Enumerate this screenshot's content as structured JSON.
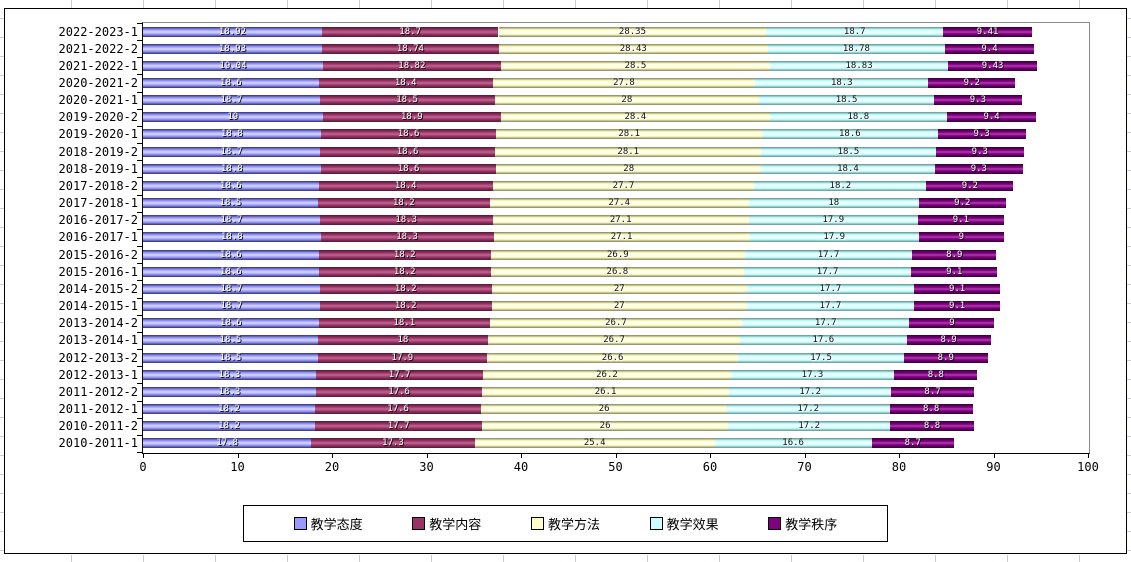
{
  "chart_data": {
    "type": "bar",
    "orientation": "horizontal_stacked",
    "title": "",
    "xlabel": "",
    "ylabel": "",
    "xlim": [
      0,
      100
    ],
    "x_ticks": [
      0,
      10,
      20,
      30,
      40,
      50,
      60,
      70,
      80,
      90,
      100
    ],
    "grid": false,
    "data_labels": true,
    "legend_position": "bottom",
    "categories": [
      "2022-2023-1",
      "2021-2022-2",
      "2021-2022-1",
      "2020-2021-2",
      "2020-2021-1",
      "2019-2020-2",
      "2019-2020-1",
      "2018-2019-2",
      "2018-2019-1",
      "2017-2018-2",
      "2017-2018-1",
      "2016-2017-2",
      "2016-2017-1",
      "2015-2016-2",
      "2015-2016-1",
      "2014-2015-2",
      "2014-2015-1",
      "2013-2014-2",
      "2013-2014-1",
      "2012-2013-2",
      "2012-2013-1",
      "2011-2012-2",
      "2011-2012-1",
      "2010-2011-2",
      "2010-2011-1"
    ],
    "series": [
      {
        "name": "教学态度",
        "color": "#9999FF",
        "values": [
          18.92,
          18.93,
          19.04,
          18.6,
          18.7,
          19,
          18.8,
          18.7,
          18.8,
          18.6,
          18.5,
          18.7,
          18.8,
          18.6,
          18.6,
          18.7,
          18.7,
          18.6,
          18.5,
          18.5,
          18.3,
          18.3,
          18.2,
          18.2,
          17.8
        ]
      },
      {
        "name": "教学内容",
        "color": "#993366",
        "values": [
          18.7,
          18.74,
          18.82,
          18.4,
          18.5,
          18.9,
          18.6,
          18.6,
          18.6,
          18.4,
          18.2,
          18.3,
          18.3,
          18.2,
          18.2,
          18.2,
          18.2,
          18.1,
          18,
          17.9,
          17.7,
          17.6,
          17.6,
          17.7,
          17.3
        ]
      },
      {
        "name": "教学方法",
        "color": "#FFFFCC",
        "values": [
          28.35,
          28.43,
          28.5,
          27.8,
          28,
          28.4,
          28.1,
          28.1,
          28,
          27.7,
          27.4,
          27.1,
          27.1,
          26.9,
          26.8,
          27,
          27,
          26.7,
          26.7,
          26.6,
          26.2,
          26.1,
          26,
          26,
          25.4
        ]
      },
      {
        "name": "教学效果",
        "color": "#CCFFFF",
        "values": [
          18.7,
          18.78,
          18.83,
          18.3,
          18.5,
          18.8,
          18.6,
          18.5,
          18.4,
          18.2,
          18,
          17.9,
          17.9,
          17.7,
          17.7,
          17.7,
          17.7,
          17.7,
          17.6,
          17.5,
          17.3,
          17.2,
          17.2,
          17.2,
          16.6
        ]
      },
      {
        "name": "教学秩序",
        "color": "#800080",
        "values": [
          9.41,
          9.4,
          9.43,
          9.2,
          9.3,
          9.4,
          9.3,
          9.3,
          9.3,
          9.2,
          9.2,
          9.1,
          9,
          8.9,
          9.1,
          9.1,
          9.1,
          9,
          8.9,
          8.9,
          8.8,
          8.7,
          8.8,
          8.8,
          8.7
        ]
      }
    ]
  }
}
